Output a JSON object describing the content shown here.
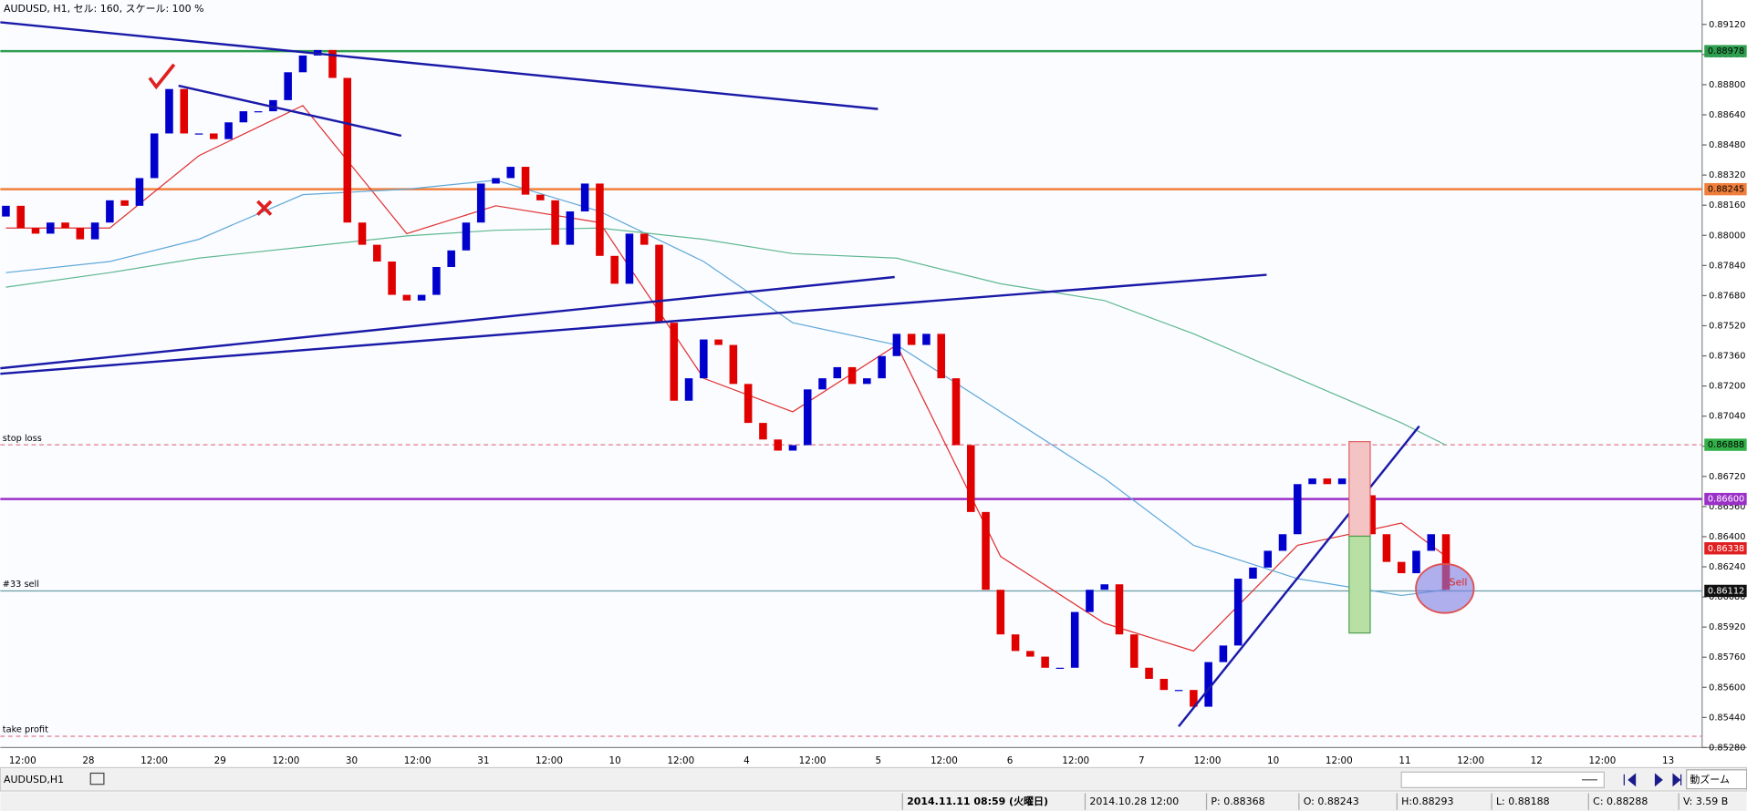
{
  "header": {
    "title": "AUDUSD, H1, セル: 160, スケール: 100 %"
  },
  "chart_data": {
    "type": "candlestick",
    "open": [
      0.881,
      0.88157,
      0.88039,
      0.88009,
      0.88068,
      0.88039,
      0.87979,
      0.88068,
      0.88186,
      0.88157,
      0.88304,
      0.88541,
      0.88777,
      0.88541,
      0.88541,
      0.88511,
      0.886,
      0.88659,
      0.88659,
      0.88718,
      0.88866,
      0.88955,
      0.88984,
      0.88836,
      0.88068,
      0.8795,
      0.87861,
      0.87684,
      0.87654,
      0.87684,
      0.87832,
      0.8792,
      0.88068,
      0.88275,
      0.88304,
      0.88364,
      0.88216,
      0.88186,
      0.8795,
      0.88127,
      0.88275,
      0.87891,
      0.87743,
      0.88009,
      0.8795,
      0.87536,
      0.87122,
      0.87241,
      0.87447,
      0.87418,
      0.87211,
      0.87004,
      0.86916,
      0.86857,
      0.86886,
      0.87182,
      0.87241,
      0.873,
      0.87211,
      0.87241,
      0.87359,
      0.87477,
      0.87418,
      0.87477,
      0.87241,
      0.86886,
      0.86531,
      0.86118,
      0.85881,
      0.85793,
      0.85763,
      0.85704,
      0.85704,
      0.86,
      0.86118,
      0.86147,
      0.85881,
      0.85704,
      0.85645,
      0.85586,
      0.85586,
      0.85497,
      0.85734,
      0.85822,
      0.86177,
      0.86236,
      0.86325,
      0.86413,
      0.86679,
      0.86709,
      0.86679,
      0.86709,
      0.8662,
      0.86413,
      0.86266,
      0.86206,
      0.86325,
      0.86413
    ],
    "close": [
      0.88157,
      0.88039,
      0.88009,
      0.88068,
      0.88039,
      0.87979,
      0.88068,
      0.88186,
      0.88157,
      0.88304,
      0.88541,
      0.88777,
      0.88541,
      0.88541,
      0.88511,
      0.886,
      0.88659,
      0.88659,
      0.88718,
      0.88866,
      0.88955,
      0.88984,
      0.88836,
      0.88068,
      0.8795,
      0.87861,
      0.87684,
      0.87654,
      0.87684,
      0.87832,
      0.8792,
      0.88068,
      0.88275,
      0.88304,
      0.88364,
      0.88216,
      0.88186,
      0.8795,
      0.88127,
      0.88275,
      0.87891,
      0.87743,
      0.88009,
      0.8795,
      0.87536,
      0.87122,
      0.87241,
      0.87447,
      0.87418,
      0.87211,
      0.87004,
      0.86916,
      0.86857,
      0.86886,
      0.87182,
      0.87241,
      0.873,
      0.87211,
      0.87241,
      0.87359,
      0.87477,
      0.87418,
      0.87477,
      0.87241,
      0.86886,
      0.86531,
      0.86118,
      0.85881,
      0.85793,
      0.85763,
      0.85704,
      0.85704,
      0.86,
      0.86118,
      0.86147,
      0.85881,
      0.85704,
      0.85645,
      0.85586,
      0.85586,
      0.85497,
      0.85734,
      0.85822,
      0.86177,
      0.86236,
      0.86325,
      0.86413,
      0.86679,
      0.86709,
      0.86679,
      0.86709,
      0.8662,
      0.86413,
      0.86266,
      0.86206,
      0.86325,
      0.86413,
      0.86118
    ],
    "up_color": "#0000cd",
    "down_color": "#e00000",
    "ylim": [
      0.8528,
      0.89167
    ],
    "yticks": [
      {
        "value": 0.8912,
        "label": "0.89120"
      },
      {
        "value": 0.8896,
        "label": "0.88960"
      },
      {
        "value": 0.888,
        "label": "0.88800"
      },
      {
        "value": 0.8864,
        "label": "0.88640"
      },
      {
        "value": 0.8848,
        "label": "0.88480"
      },
      {
        "value": 0.8832,
        "label": "0.88320"
      },
      {
        "value": 0.8816,
        "label": "0.88160"
      },
      {
        "value": 0.88,
        "label": "0.88000"
      },
      {
        "value": 0.8784,
        "label": "0.87840"
      },
      {
        "value": 0.8768,
        "label": "0.87680"
      },
      {
        "value": 0.8752,
        "label": "0.87520"
      },
      {
        "value": 0.8736,
        "label": "0.87360"
      },
      {
        "value": 0.872,
        "label": "0.87200"
      },
      {
        "value": 0.8704,
        "label": "0.87040"
      },
      {
        "value": 0.8688,
        "label": "0.86880"
      },
      {
        "value": 0.8672,
        "label": "0.86720"
      },
      {
        "value": 0.8656,
        "label": "0.86560"
      },
      {
        "value": 0.864,
        "label": "0.86400"
      },
      {
        "value": 0.8624,
        "label": "0.86240"
      },
      {
        "value": 0.8608,
        "label": "0.86080"
      },
      {
        "value": 0.8592,
        "label": "0.85920"
      },
      {
        "value": 0.8576,
        "label": "0.85760"
      },
      {
        "value": 0.856,
        "label": "0.85600"
      },
      {
        "value": 0.8544,
        "label": "0.85440"
      },
      {
        "value": 0.8528,
        "label": "0.85280"
      }
    ],
    "x_labels": [
      "12:00",
      "28",
      "12:00",
      "29",
      "12:00",
      "30",
      "12:00",
      "31",
      "12:00",
      "10",
      "12:00",
      "4",
      "12:00",
      "5",
      "12:00",
      "6",
      "12:00",
      "7",
      "12:00",
      "10",
      "12:00",
      "11",
      "12:00",
      "12",
      "12:00",
      "13"
    ],
    "moving_averages": [
      {
        "color": "#e03030",
        "x": [
          0,
          7,
          13,
          20,
          27,
          33,
          40,
          47,
          53,
          60,
          67,
          74,
          80,
          87,
          94,
          97
        ],
        "values": [
          0.88039,
          0.88039,
          0.88423,
          0.88689,
          0.88009,
          0.88157,
          0.88068,
          0.87241,
          0.87063,
          0.87418,
          0.86295,
          0.8594,
          0.85793,
          0.86354,
          0.86472,
          0.86295
        ]
      },
      {
        "color": "#5fa8d8",
        "x": [
          0,
          7,
          13,
          20,
          27,
          33,
          40,
          47,
          53,
          60,
          67,
          74,
          80,
          87,
          94,
          97
        ],
        "values": [
          0.87802,
          0.87861,
          0.87979,
          0.88216,
          0.88245,
          0.88293,
          0.88127,
          0.87861,
          0.87536,
          0.87418,
          0.87063,
          0.86709,
          0.86354,
          0.86177,
          0.86088,
          0.86118
        ]
      },
      {
        "color": "#5fb890",
        "x": [
          0,
          7,
          13,
          20,
          27,
          33,
          40,
          47,
          53,
          60,
          67,
          74,
          80,
          87,
          94,
          97
        ],
        "values": [
          0.87725,
          0.87802,
          0.87879,
          0.87938,
          0.87997,
          0.88027,
          0.88039,
          0.87979,
          0.87903,
          0.87879,
          0.87743,
          0.87654,
          0.87477,
          0.87241,
          0.87004,
          0.86886
        ]
      }
    ],
    "levels": [
      {
        "value": 0.88978,
        "color": "#2e9e4f",
        "style": "solid",
        "badge": "#2e9e4f",
        "badge_text": "#000"
      },
      {
        "value": 0.88245,
        "color": "#f07f3c",
        "style": "solid",
        "badge": "#f07f3c",
        "badge_text": "#000"
      },
      {
        "name": "stop loss",
        "value": 0.86888,
        "color": "#e07a8a",
        "style": "dash",
        "badge": "#33b04a",
        "badge_text": "#000"
      },
      {
        "value": {
          "value": 0.866,
          "label": "0.86600"
        },
        "color": "#9b30c8",
        "style": "solid",
        "badge": "#9b30c8",
        "badge_text": "#fff"
      },
      {
        "value": 0.86338,
        "badge": "#e02020",
        "badge_text": "#fff"
      },
      {
        "name": "#33 sell",
        "value": 0.86112,
        "color": "#6aa0a8",
        "style": "solid",
        "badge": "#111",
        "badge_text": "#fff"
      },
      {
        "name": "take profit",
        "value": 0.8534,
        "color": "#e07a8a",
        "style": "dash"
      }
    ],
    "annotation": "Sell"
  },
  "tab": {
    "label": "AUDUSD,H1"
  },
  "toolbar": {
    "zoom": "動ズーム"
  },
  "status_bar": [
    "2014.11.11 08:59 (火曜日)",
    "2014.10.28 12:00",
    "P: 0.88368",
    "O: 0.88243",
    "H:0.88293",
    "L: 0.88188",
    "C: 0.88288",
    "V: 3.59 B"
  ]
}
